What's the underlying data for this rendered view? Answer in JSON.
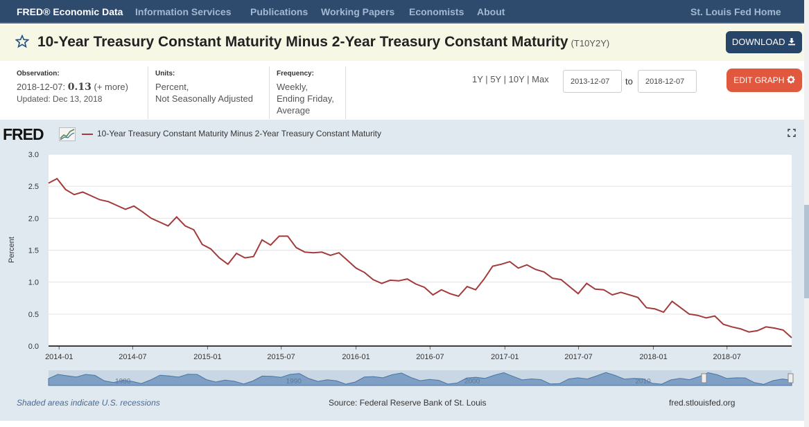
{
  "nav": {
    "brand": "FRED® Economic Data",
    "items": [
      "Information Services",
      "Publications",
      "Working Papers",
      "Economists",
      "About"
    ],
    "home_link": "St. Louis Fed Home"
  },
  "header": {
    "title": "10-Year Treasury Constant Maturity Minus 2-Year Treasury Constant Maturity",
    "series_id": "(T10Y2Y)",
    "download_label": "DOWNLOAD",
    "star_icon": "star-icon",
    "download_icon": "download-icon"
  },
  "meta": {
    "observation_head": "Observation:",
    "observation_date": "2018-12-07:",
    "observation_value": "0.13",
    "observation_more": "(+ more)",
    "updated": "Updated: Dec 13, 2018",
    "units_head": "Units:",
    "units_line1": "Percent,",
    "units_line2": "Not Seasonally Adjusted",
    "frequency_head": "Frequency:",
    "frequency_line1": "Weekly,",
    "frequency_line2": "Ending Friday,",
    "frequency_line3": "Average"
  },
  "controls": {
    "range_1y": "1Y",
    "range_5y": "5Y",
    "range_10y": "10Y",
    "range_max": "Max",
    "sep": "|",
    "start_date": "2013-12-07",
    "end_date": "2018-12-07",
    "to_label": "to",
    "edit_label": "EDIT GRAPH",
    "edit_icon": "gear-icon"
  },
  "graph": {
    "logo_text": "FRED",
    "legend_label": "10-Year Treasury Constant Maturity Minus 2-Year Treasury Constant Maturity",
    "fullscreen_icon": "expand-icon",
    "recession_note": "Shaded areas indicate U.S. recessions",
    "source_note": "Source: Federal Reserve Bank of St. Louis",
    "site_note": "fred.stlouisfed.org",
    "series_color": "#a33a3a"
  },
  "chart_data": {
    "type": "line",
    "title": "10-Year Treasury Constant Maturity Minus 2-Year Treasury Constant Maturity",
    "xlabel": "",
    "ylabel": "Percent",
    "ylim": [
      0,
      3.0
    ],
    "xlim": [
      "2013-12-06",
      "2018-12-07"
    ],
    "yticks": [
      "0.0",
      "0.5",
      "1.0",
      "1.5",
      "2.0",
      "2.5",
      "3.0"
    ],
    "xticks": [
      "2014-01",
      "2014-07",
      "2015-01",
      "2015-07",
      "2016-01",
      "2016-07",
      "2017-01",
      "2017-07",
      "2018-01",
      "2018-07"
    ],
    "navigator_labels": [
      "1980",
      "1990",
      "2000",
      "2010"
    ],
    "series": [
      {
        "name": "T10Y2Y",
        "x": [
          "2013-12-06",
          "2013-12-27",
          "2014-01-17",
          "2014-02-07",
          "2014-02-28",
          "2014-03-21",
          "2014-04-11",
          "2014-05-02",
          "2014-05-23",
          "2014-06-13",
          "2014-07-04",
          "2014-07-25",
          "2014-08-15",
          "2014-09-05",
          "2014-09-26",
          "2014-10-17",
          "2014-11-07",
          "2014-11-28",
          "2014-12-19",
          "2015-01-09",
          "2015-01-30",
          "2015-02-20",
          "2015-03-13",
          "2015-04-03",
          "2015-04-24",
          "2015-05-15",
          "2015-06-05",
          "2015-06-26",
          "2015-07-17",
          "2015-08-07",
          "2015-08-28",
          "2015-09-18",
          "2015-10-09",
          "2015-10-30",
          "2015-11-20",
          "2015-12-11",
          "2016-01-01",
          "2016-01-22",
          "2016-02-12",
          "2016-03-04",
          "2016-03-25",
          "2016-04-15",
          "2016-05-06",
          "2016-05-27",
          "2016-06-17",
          "2016-07-08",
          "2016-07-29",
          "2016-08-19",
          "2016-09-09",
          "2016-09-30",
          "2016-10-21",
          "2016-11-11",
          "2016-12-02",
          "2016-12-23",
          "2017-01-13",
          "2017-02-03",
          "2017-02-24",
          "2017-03-17",
          "2017-04-07",
          "2017-04-28",
          "2017-05-19",
          "2017-06-09",
          "2017-06-30",
          "2017-07-21",
          "2017-08-11",
          "2017-09-01",
          "2017-09-22",
          "2017-10-13",
          "2017-11-03",
          "2017-11-24",
          "2017-12-15",
          "2018-01-05",
          "2018-01-26",
          "2018-02-16",
          "2018-03-09",
          "2018-03-30",
          "2018-04-20",
          "2018-05-11",
          "2018-06-01",
          "2018-06-22",
          "2018-07-13",
          "2018-08-03",
          "2018-08-24",
          "2018-09-14",
          "2018-10-05",
          "2018-10-26",
          "2018-11-16",
          "2018-12-07"
        ],
        "values": [
          2.55,
          2.62,
          2.45,
          2.37,
          2.41,
          2.35,
          2.29,
          2.26,
          2.2,
          2.14,
          2.19,
          2.1,
          2.0,
          1.94,
          1.88,
          2.02,
          1.88,
          1.82,
          1.59,
          1.52,
          1.38,
          1.28,
          1.45,
          1.38,
          1.4,
          1.66,
          1.58,
          1.72,
          1.72,
          1.54,
          1.47,
          1.46,
          1.47,
          1.42,
          1.46,
          1.34,
          1.22,
          1.15,
          1.04,
          0.98,
          1.03,
          1.02,
          1.05,
          0.97,
          0.92,
          0.8,
          0.88,
          0.82,
          0.78,
          0.93,
          0.88,
          1.05,
          1.25,
          1.28,
          1.32,
          1.22,
          1.27,
          1.2,
          1.16,
          1.06,
          1.04,
          0.93,
          0.82,
          0.98,
          0.89,
          0.88,
          0.8,
          0.84,
          0.8,
          0.76,
          0.6,
          0.58,
          0.53,
          0.7,
          0.6,
          0.5,
          0.48,
          0.44,
          0.47,
          0.34,
          0.3,
          0.27,
          0.22,
          0.24,
          0.3,
          0.28,
          0.25,
          0.13
        ]
      }
    ]
  }
}
